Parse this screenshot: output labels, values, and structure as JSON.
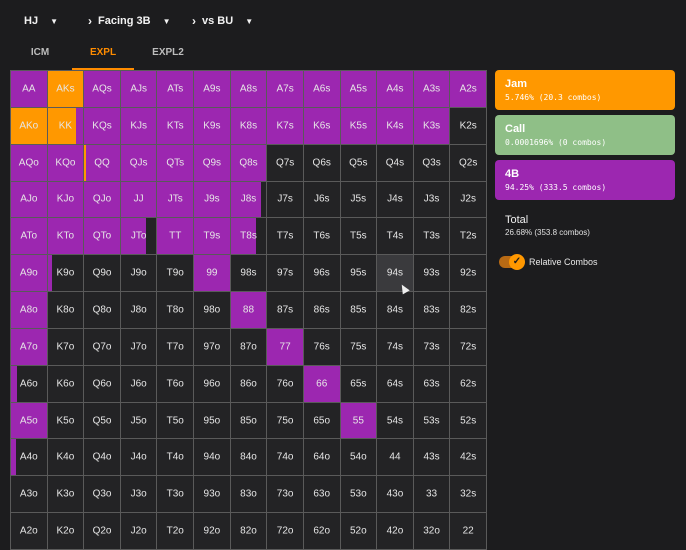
{
  "header": {
    "position": {
      "label": "HJ"
    },
    "scenario": {
      "label": "Facing 3B"
    },
    "opponent": {
      "label": "vs BU"
    }
  },
  "tabs": [
    {
      "label": "ICM",
      "active": false
    },
    {
      "label": "EXPL",
      "active": true
    },
    {
      "label": "EXPL2",
      "active": false
    }
  ],
  "colors": {
    "jam": "#ff9800",
    "call": "#8fbf87",
    "fourbet": "#9c27b0",
    "fold": "#232325",
    "accent": "#ff8c00"
  },
  "actions": [
    {
      "key": "jam",
      "name": "Jam",
      "stat": "5.746% (20.3 combos)",
      "color": "#ff9800"
    },
    {
      "key": "call",
      "name": "Call",
      "stat": "0.0001696% (0 combos)",
      "color": "#8fbf87"
    },
    {
      "key": "fourbet",
      "name": "4B",
      "stat": "94.25% (333.5 combos)",
      "color": "#9c27b0"
    }
  ],
  "total": {
    "title": "Total",
    "stat": "26.68% (353.8 combos)"
  },
  "relative_combos": {
    "label": "Relative Combos",
    "on": true
  },
  "selected_hand": "94s",
  "grid": {
    "rows": [
      [
        "AA",
        "AKs",
        "AQs",
        "AJs",
        "ATs",
        "A9s",
        "A8s",
        "A7s",
        "A6s",
        "A5s",
        "A4s",
        "A3s",
        "A2s"
      ],
      [
        "AKo",
        "KK",
        "KQs",
        "KJs",
        "KTs",
        "K9s",
        "K8s",
        "K7s",
        "K6s",
        "K5s",
        "K4s",
        "K3s",
        "K2s"
      ],
      [
        "AQo",
        "KQo",
        "QQ",
        "QJs",
        "QTs",
        "Q9s",
        "Q8s",
        "Q7s",
        "Q6s",
        "Q5s",
        "Q4s",
        "Q3s",
        "Q2s"
      ],
      [
        "AJo",
        "KJo",
        "QJo",
        "JJ",
        "JTs",
        "J9s",
        "J8s",
        "J7s",
        "J6s",
        "J5s",
        "J4s",
        "J3s",
        "J2s"
      ],
      [
        "ATo",
        "KTo",
        "QTo",
        "JTo",
        "TT",
        "T9s",
        "T8s",
        "T7s",
        "T6s",
        "T5s",
        "T4s",
        "T3s",
        "T2s"
      ],
      [
        "A9o",
        "K9o",
        "Q9o",
        "J9o",
        "T9o",
        "99",
        "98s",
        "97s",
        "96s",
        "95s",
        "94s",
        "93s",
        "92s"
      ],
      [
        "A8o",
        "K8o",
        "Q8o",
        "J8o",
        "T8o",
        "98o",
        "88",
        "87s",
        "86s",
        "85s",
        "84s",
        "83s",
        "82s"
      ],
      [
        "A7o",
        "K7o",
        "Q7o",
        "J7o",
        "T7o",
        "97o",
        "87o",
        "77",
        "76s",
        "75s",
        "74s",
        "73s",
        "72s"
      ],
      [
        "A6o",
        "K6o",
        "Q6o",
        "J6o",
        "T6o",
        "96o",
        "86o",
        "76o",
        "66",
        "65s",
        "64s",
        "63s",
        "62s"
      ],
      [
        "A5o",
        "K5o",
        "Q5o",
        "J5o",
        "T5o",
        "95o",
        "85o",
        "75o",
        "65o",
        "55",
        "54s",
        "53s",
        "52s"
      ],
      [
        "A4o",
        "K4o",
        "Q4o",
        "J4o",
        "T4o",
        "94o",
        "84o",
        "74o",
        "64o",
        "54o",
        "44",
        "43s",
        "42s"
      ],
      [
        "A3o",
        "K3o",
        "Q3o",
        "J3o",
        "T3o",
        "93o",
        "83o",
        "73o",
        "63o",
        "53o",
        "43o",
        "33",
        "32s"
      ],
      [
        "A2o",
        "K2o",
        "Q2o",
        "J2o",
        "T2o",
        "92o",
        "82o",
        "72o",
        "62o",
        "52o",
        "42o",
        "32o",
        "22"
      ]
    ],
    "frequencies": {
      "AA": {
        "fourbet": 1
      },
      "AKs": {
        "jam": 1
      },
      "AQs": {
        "fourbet": 1
      },
      "AJs": {
        "fourbet": 1
      },
      "ATs": {
        "fourbet": 1
      },
      "A9s": {
        "fourbet": 1
      },
      "A8s": {
        "fourbet": 1
      },
      "A7s": {
        "fourbet": 1
      },
      "A6s": {
        "fourbet": 1
      },
      "A5s": {
        "fourbet": 1
      },
      "A4s": {
        "fourbet": 1
      },
      "A3s": {
        "fourbet": 1
      },
      "A2s": {
        "fourbet": 1
      },
      "AKo": {
        "jam": 1
      },
      "KK": {
        "jam": 0.8,
        "fourbet": 0.2
      },
      "KQs": {
        "fourbet": 1
      },
      "KJs": {
        "fourbet": 1
      },
      "KTs": {
        "fourbet": 1
      },
      "K9s": {
        "fourbet": 1
      },
      "K8s": {
        "fourbet": 1
      },
      "K7s": {
        "fourbet": 1
      },
      "K6s": {
        "fourbet": 1
      },
      "K5s": {
        "fourbet": 1
      },
      "K4s": {
        "fourbet": 1
      },
      "K3s": {
        "fourbet": 1
      },
      "AQo": {
        "fourbet": 1
      },
      "KQo": {
        "fourbet": 1
      },
      "QQ": {
        "jam": 0.04,
        "fourbet": 0.96
      },
      "QJs": {
        "fourbet": 1
      },
      "QTs": {
        "fourbet": 1
      },
      "Q9s": {
        "fourbet": 1
      },
      "Q8s": {
        "fourbet": 1
      },
      "AJo": {
        "fourbet": 1
      },
      "KJo": {
        "fourbet": 1
      },
      "QJo": {
        "fourbet": 1
      },
      "JJ": {
        "fourbet": 1
      },
      "JTs": {
        "fourbet": 1
      },
      "J9s": {
        "fourbet": 1
      },
      "J8s": {
        "fourbet": 0.86
      },
      "ATo": {
        "fourbet": 1
      },
      "KTo": {
        "fourbet": 1
      },
      "QTo": {
        "fourbet": 1
      },
      "JTo": {
        "fourbet": 0.7
      },
      "TT": {
        "fourbet": 1
      },
      "T9s": {
        "fourbet": 1
      },
      "T8s": {
        "fourbet": 0.7
      },
      "A9o": {
        "fourbet": 1
      },
      "K9o": {
        "fourbet": 0.12
      },
      "99": {
        "fourbet": 1
      },
      "A8o": {
        "fourbet": 1
      },
      "88": {
        "fourbet": 1
      },
      "A7o": {
        "fourbet": 1
      },
      "77": {
        "fourbet": 1
      },
      "A6o": {
        "fourbet": 0.16
      },
      "66": {
        "fourbet": 1
      },
      "A5o": {
        "fourbet": 1
      },
      "55": {
        "fourbet": 1
      },
      "A4o": {
        "fourbet": 0.14
      }
    }
  }
}
